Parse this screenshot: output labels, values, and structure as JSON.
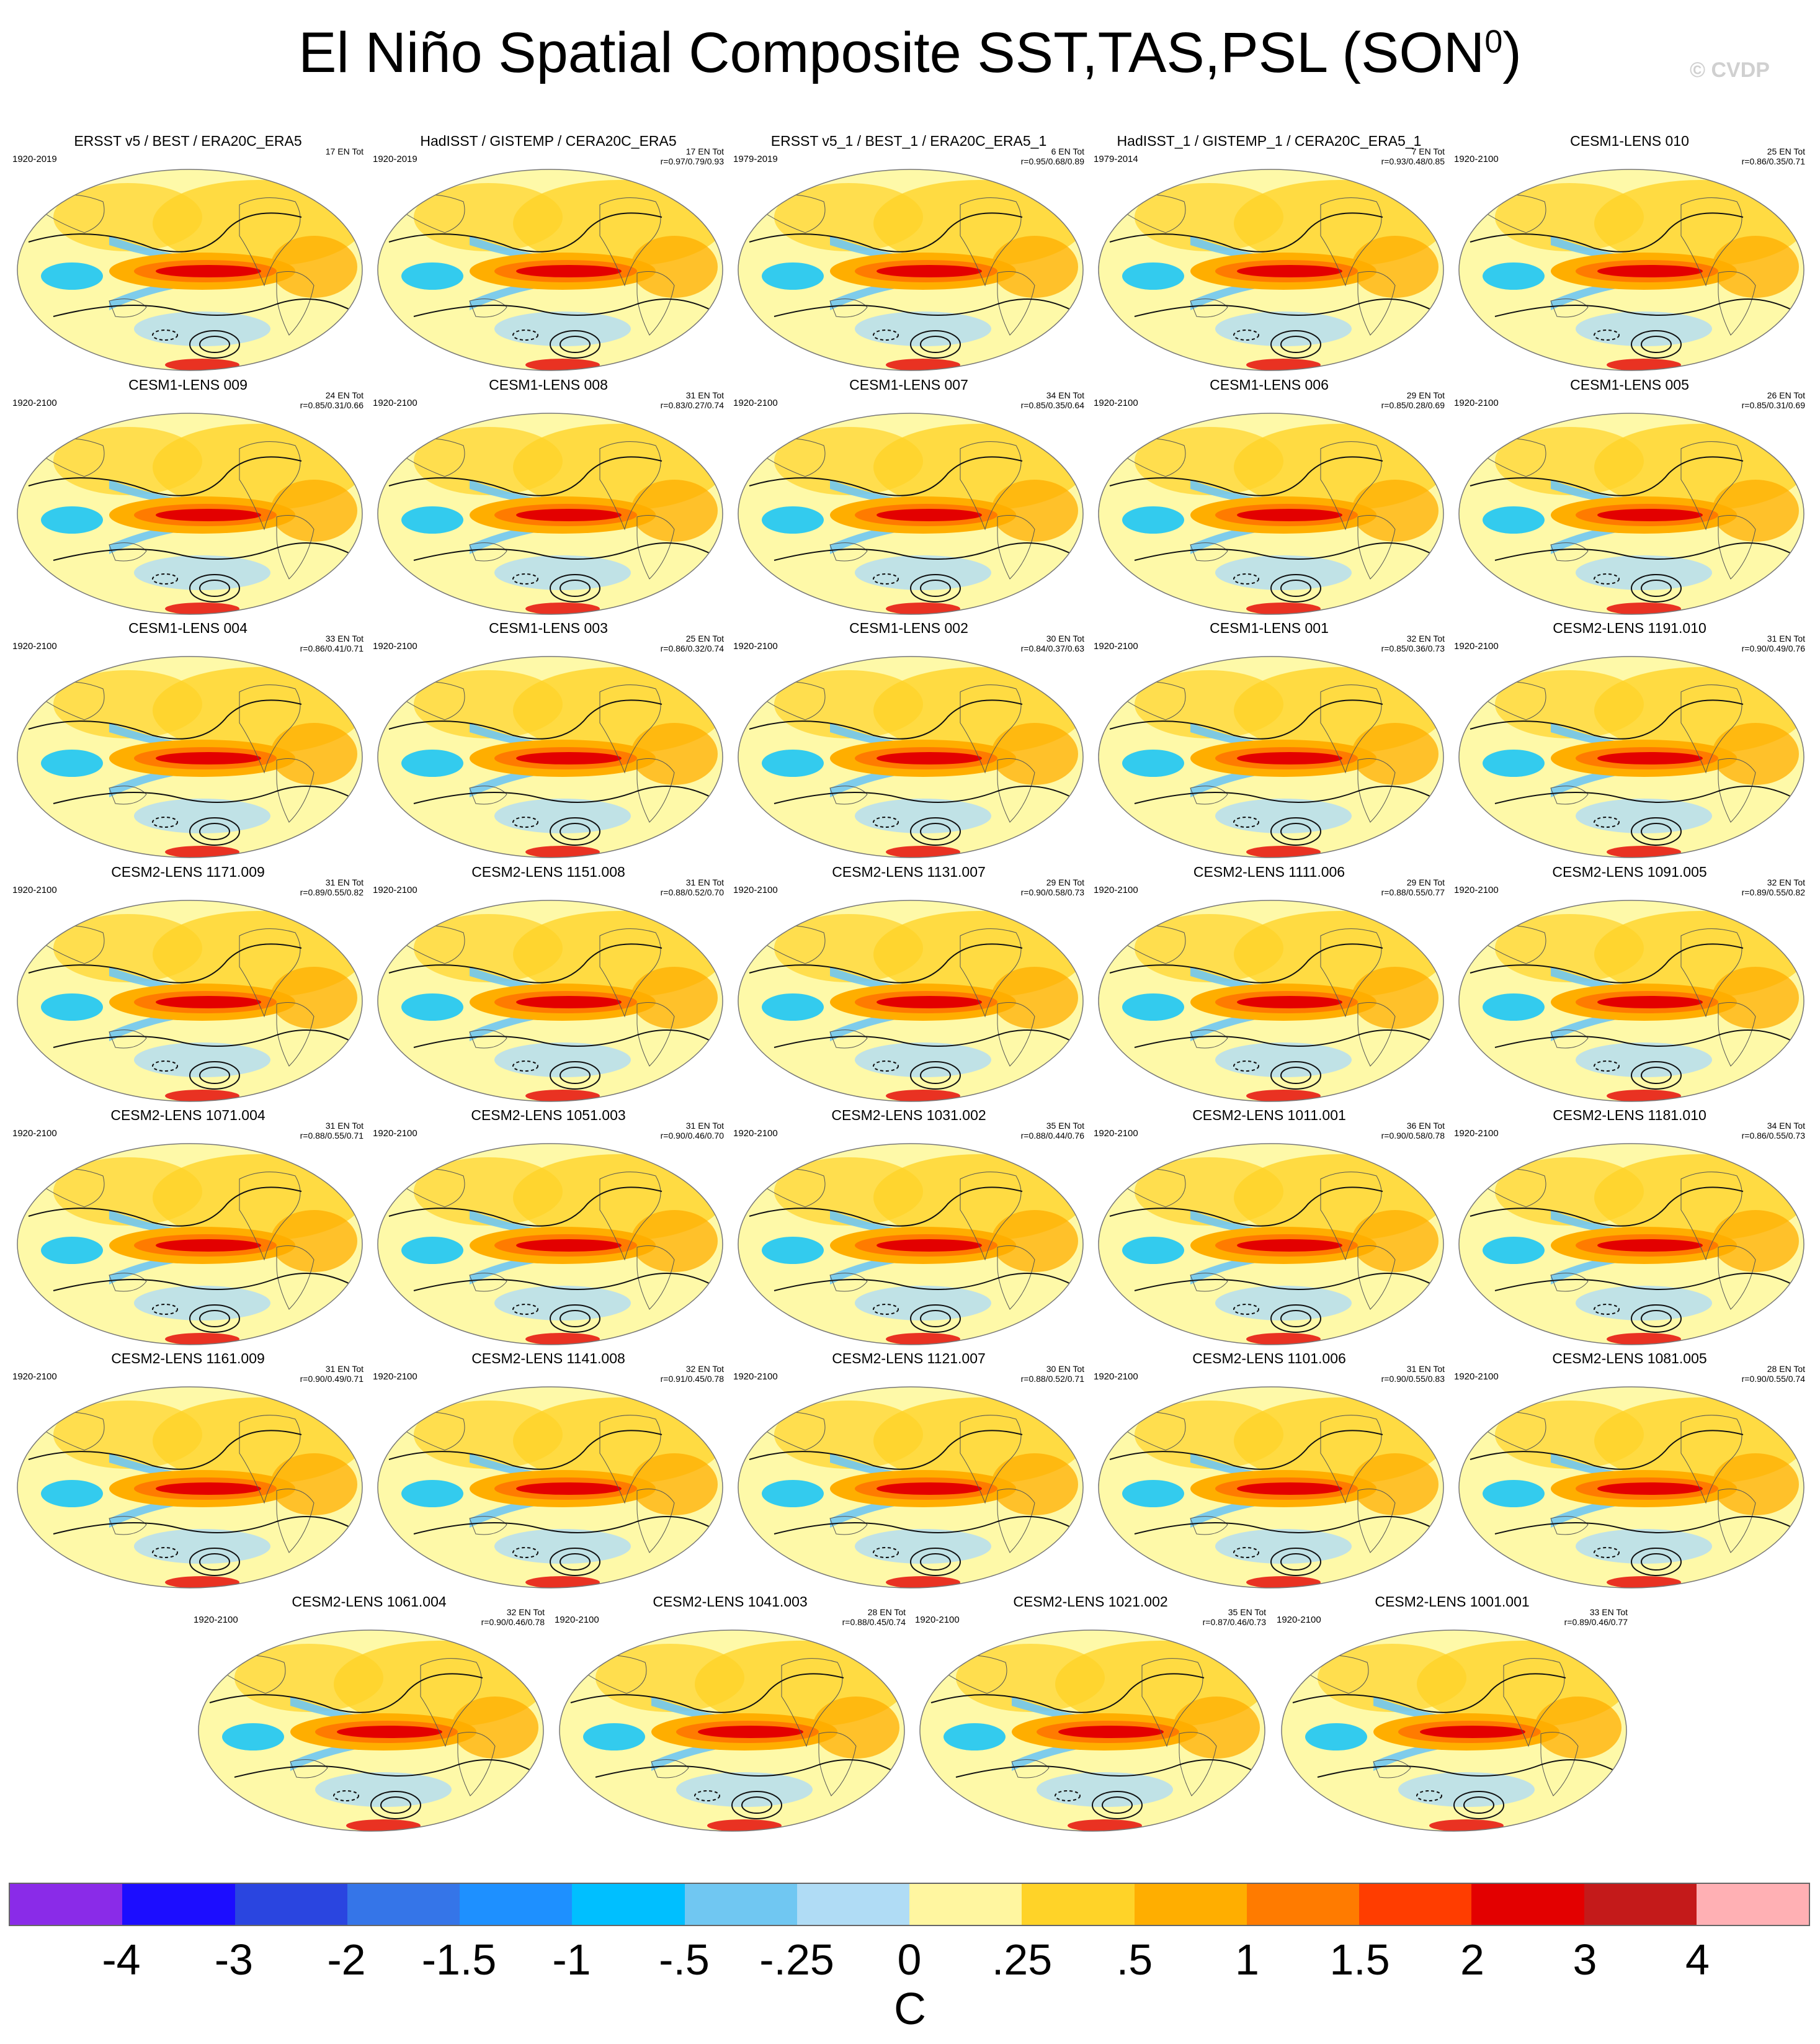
{
  "title": {
    "main": "El Niño Spatial Composite SST,TAS,PSL (SON",
    "sup": "0",
    "close": ")"
  },
  "watermark": "© CVDP",
  "colors": {
    "ocean_fill": "#fef9a8",
    "map_outline": "#555555",
    "contour": "#111111"
  },
  "panels": [
    {
      "title": "ERSST v5 / BEST / ERA20C_ERA5",
      "years": "1920-2019",
      "count": "17 EN Tot",
      "stats": ""
    },
    {
      "title": "HadISST / GISTEMP / CERA20C_ERA5",
      "years": "1920-2019",
      "count": "17 EN Tot",
      "stats": "r=0.97/0.79/0.93"
    },
    {
      "title": "ERSST v5_1 / BEST_1 / ERA20C_ERA5_1",
      "years": "1979-2019",
      "count": "6 EN Tot",
      "stats": "r=0.95/0.68/0.89"
    },
    {
      "title": "HadISST_1 / GISTEMP_1 / CERA20C_ERA5_1",
      "years": "1979-2014",
      "count": "7 EN Tot",
      "stats": "r=0.93/0.48/0.85"
    },
    {
      "title": "CESM1-LENS 010",
      "years": "1920-2100",
      "count": "25 EN Tot",
      "stats": "r=0.86/0.35/0.71"
    },
    {
      "title": "CESM1-LENS 009",
      "years": "1920-2100",
      "count": "24 EN Tot",
      "stats": "r=0.85/0.31/0.66"
    },
    {
      "title": "CESM1-LENS 008",
      "years": "1920-2100",
      "count": "31 EN Tot",
      "stats": "r=0.83/0.27/0.74"
    },
    {
      "title": "CESM1-LENS 007",
      "years": "1920-2100",
      "count": "34 EN Tot",
      "stats": "r=0.85/0.35/0.64"
    },
    {
      "title": "CESM1-LENS 006",
      "years": "1920-2100",
      "count": "29 EN Tot",
      "stats": "r=0.85/0.28/0.69"
    },
    {
      "title": "CESM1-LENS 005",
      "years": "1920-2100",
      "count": "26 EN Tot",
      "stats": "r=0.85/0.31/0.69"
    },
    {
      "title": "CESM1-LENS 004",
      "years": "1920-2100",
      "count": "33 EN Tot",
      "stats": "r=0.86/0.41/0.71"
    },
    {
      "title": "CESM1-LENS 003",
      "years": "1920-2100",
      "count": "25 EN Tot",
      "stats": "r=0.86/0.32/0.74"
    },
    {
      "title": "CESM1-LENS 002",
      "years": "1920-2100",
      "count": "30 EN Tot",
      "stats": "r=0.84/0.37/0.63"
    },
    {
      "title": "CESM1-LENS 001",
      "years": "1920-2100",
      "count": "32 EN Tot",
      "stats": "r=0.85/0.36/0.73"
    },
    {
      "title": "CESM2-LENS 1191.010",
      "years": "1920-2100",
      "count": "31 EN Tot",
      "stats": "r=0.90/0.49/0.76"
    },
    {
      "title": "CESM2-LENS 1171.009",
      "years": "1920-2100",
      "count": "31 EN Tot",
      "stats": "r=0.89/0.55/0.82"
    },
    {
      "title": "CESM2-LENS 1151.008",
      "years": "1920-2100",
      "count": "31 EN Tot",
      "stats": "r=0.88/0.52/0.70"
    },
    {
      "title": "CESM2-LENS 1131.007",
      "years": "1920-2100",
      "count": "29 EN Tot",
      "stats": "r=0.90/0.58/0.73"
    },
    {
      "title": "CESM2-LENS 1111.006",
      "years": "1920-2100",
      "count": "29 EN Tot",
      "stats": "r=0.88/0.55/0.77"
    },
    {
      "title": "CESM2-LENS 1091.005",
      "years": "1920-2100",
      "count": "32 EN Tot",
      "stats": "r=0.89/0.55/0.82"
    },
    {
      "title": "CESM2-LENS 1071.004",
      "years": "1920-2100",
      "count": "31 EN Tot",
      "stats": "r=0.88/0.55/0.71"
    },
    {
      "title": "CESM2-LENS 1051.003",
      "years": "1920-2100",
      "count": "31 EN Tot",
      "stats": "r=0.90/0.46/0.70"
    },
    {
      "title": "CESM2-LENS 1031.002",
      "years": "1920-2100",
      "count": "35 EN Tot",
      "stats": "r=0.88/0.44/0.76"
    },
    {
      "title": "CESM2-LENS 1011.001",
      "years": "1920-2100",
      "count": "36 EN Tot",
      "stats": "r=0.90/0.58/0.78"
    },
    {
      "title": "CESM2-LENS 1181.010",
      "years": "1920-2100",
      "count": "34 EN Tot",
      "stats": "r=0.86/0.55/0.73"
    },
    {
      "title": "CESM2-LENS 1161.009",
      "years": "1920-2100",
      "count": "31 EN Tot",
      "stats": "r=0.90/0.49/0.71"
    },
    {
      "title": "CESM2-LENS 1141.008",
      "years": "1920-2100",
      "count": "32 EN Tot",
      "stats": "r=0.91/0.45/0.78"
    },
    {
      "title": "CESM2-LENS 1121.007",
      "years": "1920-2100",
      "count": "30 EN Tot",
      "stats": "r=0.88/0.52/0.71"
    },
    {
      "title": "CESM2-LENS 1101.006",
      "years": "1920-2100",
      "count": "31 EN Tot",
      "stats": "r=0.90/0.55/0.83"
    },
    {
      "title": "CESM2-LENS 1081.005",
      "years": "1920-2100",
      "count": "28 EN Tot",
      "stats": "r=0.90/0.55/0.74"
    },
    {
      "title": "CESM2-LENS 1061.004",
      "years": "1920-2100",
      "count": "32 EN Tot",
      "stats": "r=0.90/0.46/0.78"
    },
    {
      "title": "CESM2-LENS 1041.003",
      "years": "1920-2100",
      "count": "28 EN Tot",
      "stats": "r=0.88/0.45/0.74"
    },
    {
      "title": "CESM2-LENS 1021.002",
      "years": "1920-2100",
      "count": "35 EN Tot",
      "stats": "r=0.87/0.46/0.73"
    },
    {
      "title": "CESM2-LENS 1001.001",
      "years": "1920-2100",
      "count": "33 EN Tot",
      "stats": "r=0.89/0.46/0.77"
    }
  ],
  "colorbar": {
    "colors": [
      "#8a2be8",
      "#1c0dff",
      "#2a45e0",
      "#3575e8",
      "#1e90ff",
      "#00bfff",
      "#70c7f2",
      "#b0dcf5",
      "#fff6a0",
      "#ffd328",
      "#ffae00",
      "#ff7b00",
      "#ff3d00",
      "#e30000",
      "#c41a1a",
      "#ffb0b4"
    ],
    "ticks": [
      "-4",
      "-3",
      "-2",
      "-1.5",
      "-1",
      "-.5",
      "-.25",
      "0",
      ".25",
      ".5",
      "1",
      "1.5",
      "2",
      "3",
      "4"
    ],
    "units": "C"
  }
}
